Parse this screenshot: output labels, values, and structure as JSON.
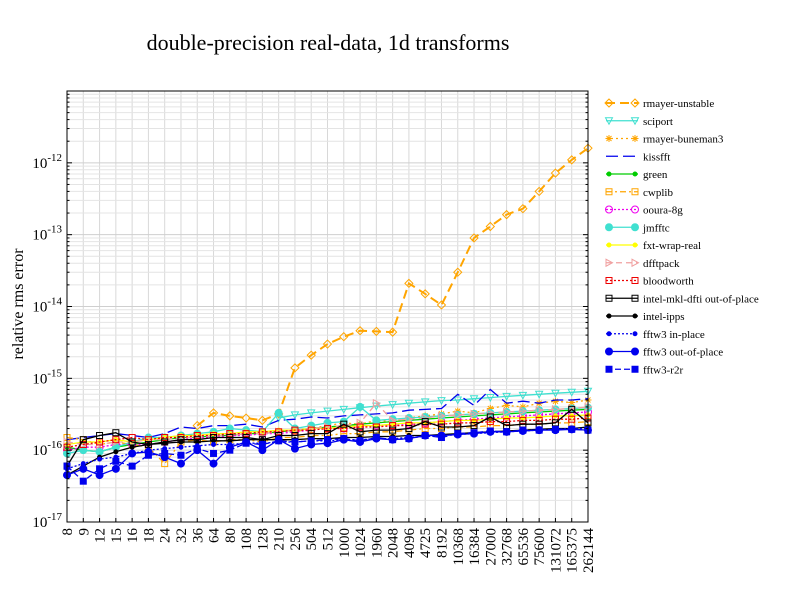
{
  "chart_data": {
    "type": "line",
    "title": "double-precision real-data, 1d transforms",
    "xlabel": "",
    "ylabel": "relative rms error",
    "y_scale": "log",
    "ylim": [
      1e-17,
      1e-11
    ],
    "y_ticks": [
      {
        "base": "10",
        "exp": "-17",
        "value": 1e-17
      },
      {
        "base": "10",
        "exp": "-16",
        "value": 1e-16
      },
      {
        "base": "10",
        "exp": "-15",
        "value": 1e-15
      },
      {
        "base": "10",
        "exp": "-14",
        "value": 1e-14
      },
      {
        "base": "10",
        "exp": "-13",
        "value": 1e-13
      },
      {
        "base": "10",
        "exp": "-12",
        "value": 1e-12
      }
    ],
    "grid": true,
    "legend_position": "right",
    "categories": [
      "8",
      "9",
      "12",
      "15",
      "16",
      "18",
      "24",
      "32",
      "36",
      "64",
      "80",
      "108",
      "128",
      "210",
      "256",
      "504",
      "512",
      "1000",
      "1024",
      "1960",
      "2048",
      "4096",
      "4725",
      "8192",
      "10368",
      "16384",
      "27000",
      "32768",
      "65536",
      "75600",
      "131072",
      "165375",
      "262144"
    ],
    "series": [
      {
        "name": "rmayer-unstable",
        "color": "#ffa500",
        "dash": "9,5",
        "marker": "diamond",
        "fill": "none",
        "values": [
          null,
          null,
          null,
          null,
          null,
          null,
          null,
          null,
          2.2e-16,
          3.3e-16,
          3e-16,
          2.8e-16,
          2.6e-16,
          3.2e-16,
          1.4e-15,
          2.1e-15,
          3e-15,
          3.8e-15,
          4.6e-15,
          4.5e-15,
          4.4e-15,
          2.1e-14,
          1.5e-14,
          1.05e-14,
          3e-14,
          9e-14,
          1.3e-13,
          1.9e-13,
          2.3e-13,
          4e-13,
          7.2e-13,
          1.1e-12,
          1.6e-12
        ]
      },
      {
        "name": "sciport",
        "color": "#40e0d0",
        "dash": "none",
        "marker": "tri-down",
        "fill": "none",
        "values": [
          null,
          null,
          null,
          null,
          null,
          null,
          null,
          null,
          null,
          null,
          null,
          null,
          null,
          2.8e-16,
          3.1e-16,
          3.3e-16,
          3.5e-16,
          3.7e-16,
          3.9e-16,
          4.1e-16,
          4.3e-16,
          4.5e-16,
          4.7e-16,
          4.9e-16,
          5e-16,
          5.2e-16,
          5.4e-16,
          5.6e-16,
          5.8e-16,
          6e-16,
          6.2e-16,
          6.4e-16,
          6.6e-16
        ]
      },
      {
        "name": "rmayer-buneman3",
        "color": "#ffa500",
        "dash": "2,3",
        "marker": "star",
        "fill": "none",
        "values": [
          null,
          null,
          null,
          null,
          null,
          null,
          null,
          null,
          null,
          null,
          null,
          null,
          null,
          null,
          1.8e-16,
          2e-16,
          2.2e-16,
          2.4e-16,
          2.3e-16,
          2.6e-16,
          2.5e-16,
          2.8e-16,
          3e-16,
          3.2e-16,
          3.5e-16,
          3.3e-16,
          3.8e-16,
          4.2e-16,
          4e-16,
          4.5e-16,
          4.8e-16,
          4.6e-16,
          5e-16
        ]
      },
      {
        "name": "kissfft",
        "color": "#0000ee",
        "dash": "12,5",
        "marker": "none",
        "fill": "none",
        "values": [
          1.4e-16,
          1.5e-16,
          1.6e-16,
          1.7e-16,
          1.6e-16,
          1.5e-16,
          1.7e-16,
          2.1e-16,
          2e-16,
          2.2e-16,
          2.2e-16,
          2.3e-16,
          2.1e-16,
          2.6e-16,
          2.7e-16,
          2.9e-16,
          2.8e-16,
          3e-16,
          3.1e-16,
          3.2e-16,
          3.3e-16,
          3.6e-16,
          3.7e-16,
          3.8e-16,
          6e-16,
          4.2e-16,
          7e-16,
          4.5e-16,
          4.8e-16,
          4.5e-16,
          5e-16,
          5e-16,
          5.2e-16
        ]
      },
      {
        "name": "green",
        "color": "#00cc00",
        "dash": "none",
        "marker": "dot",
        "fill": "#00cc00",
        "values": [
          1.1e-16,
          1e-16,
          9.5e-17,
          1.1e-16,
          1.2e-16,
          1.3e-16,
          1.4e-16,
          1.5e-16,
          1.5e-16,
          1.6e-16,
          1.6e-16,
          1.7e-16,
          1.7e-16,
          1.8e-16,
          1.9e-16,
          2e-16,
          2.1e-16,
          2.2e-16,
          2.3e-16,
          2.4e-16,
          2.5e-16,
          2.6e-16,
          2.7e-16,
          2.8e-16,
          2.9e-16,
          3e-16,
          3.1e-16,
          3.2e-16,
          3.3e-16,
          3.4e-16,
          3.5e-16,
          3.6e-16,
          3.7e-16
        ]
      },
      {
        "name": "cwplib",
        "color": "#ffa500",
        "dash": "6,3,2,3",
        "marker": "square",
        "fill": "none",
        "values": [
          1.5e-16,
          1.4e-16,
          1.2e-16,
          1.3e-16,
          1.2e-16,
          1.1e-16,
          6.5e-17,
          1.3e-16,
          1.4e-16,
          1.3e-16,
          1.4e-16,
          1.4e-16,
          1.3e-16,
          1.5e-16,
          1.5e-16,
          1.6e-16,
          1.6e-16,
          1.7e-16,
          1.7e-16,
          1.8e-16,
          1.8e-16,
          1.9e-16,
          2e-16,
          2e-16,
          2.1e-16,
          2.1e-16,
          2.2e-16,
          2.2e-16,
          2.3e-16,
          2.3e-16,
          2.4e-16,
          2.4e-16,
          2.5e-16
        ]
      },
      {
        "name": "ooura-8g",
        "color": "#ee00ee",
        "dash": "2,2",
        "marker": "circle",
        "fill": "none",
        "values": [
          1e-16,
          1.1e-16,
          1.1e-16,
          1.2e-16,
          1.2e-16,
          1.2e-16,
          1.3e-16,
          1.4e-16,
          1.5e-16,
          1.5e-16,
          1.6e-16,
          1.6e-16,
          1.7e-16,
          1.7e-16,
          1.8e-16,
          1.9e-16,
          2e-16,
          2e-16,
          2.1e-16,
          2.2e-16,
          2.2e-16,
          2.3e-16,
          2.4e-16,
          2.5e-16,
          2.6e-16,
          2.7e-16,
          2.8e-16,
          2.9e-16,
          3e-16,
          3.1e-16,
          3.2e-16,
          3.3e-16,
          3.4e-16
        ]
      },
      {
        "name": "jmfftc",
        "color": "#40e0d0",
        "dash": "none",
        "marker": "circle",
        "fill": "#40e0d0",
        "values": [
          9e-17,
          1e-16,
          9.5e-17,
          1.1e-16,
          1.3e-16,
          1.5e-16,
          1.5e-16,
          1.6e-16,
          1.7e-16,
          1.8e-16,
          2e-16,
          1.9e-16,
          1.8e-16,
          3.3e-16,
          2e-16,
          2.2e-16,
          2.4e-16,
          2.5e-16,
          4e-16,
          2.6e-16,
          2.7e-16,
          2.8e-16,
          2.9e-16,
          3e-16,
          3.1e-16,
          3.2e-16,
          3.3e-16,
          3.4e-16,
          3.5e-16,
          3.6e-16,
          3.7e-16,
          3.8e-16,
          3.9e-16
        ]
      },
      {
        "name": "fxt-wrap-real",
        "color": "#ffff00",
        "dash": "none",
        "marker": "dot",
        "fill": "#ffff00",
        "values": [
          1.2e-16,
          1.3e-16,
          1.3e-16,
          1.4e-16,
          1.3e-16,
          1.4e-16,
          1.5e-16,
          1.6e-16,
          1.6e-16,
          1.7e-16,
          1.7e-16,
          1.8e-16,
          1.8e-16,
          1.9e-16,
          1.9e-16,
          2e-16,
          2e-16,
          2.1e-16,
          2.2e-16,
          2.2e-16,
          2.3e-16,
          2.4e-16,
          2.4e-16,
          2.5e-16,
          2.6e-16,
          2.6e-16,
          2.7e-16,
          2.8e-16,
          2.8e-16,
          2.9e-16,
          3e-16,
          3e-16,
          3.1e-16
        ]
      },
      {
        "name": "dfftpack",
        "color": "#f0a0a0",
        "dash": "6,4",
        "marker": "tri-right",
        "fill": "none",
        "values": [
          1.3e-16,
          1.2e-16,
          1.2e-16,
          1.3e-16,
          1.3e-16,
          1.4e-16,
          1.4e-16,
          1.5e-16,
          1.5e-16,
          1.6e-16,
          1.6e-16,
          1.7e-16,
          1.7e-16,
          1.8e-16,
          1.9e-16,
          2e-16,
          2.1e-16,
          2.2e-16,
          2.4e-16,
          4.5e-16,
          2.6e-16,
          2.7e-16,
          2.8e-16,
          3e-16,
          3.1e-16,
          3.2e-16,
          3.3e-16,
          3.4e-16,
          3.5e-16,
          3.6e-16,
          3.7e-16,
          3.8e-16,
          4e-16
        ]
      },
      {
        "name": "bloodworth",
        "color": "#ee0000",
        "dash": "2,2",
        "marker": "square",
        "fill": "none",
        "values": [
          1.1e-16,
          1.2e-16,
          1.3e-16,
          1.4e-16,
          1.5e-16,
          1.4e-16,
          1.5e-16,
          1.5e-16,
          1.6e-16,
          1.6e-16,
          1.7e-16,
          1.7e-16,
          1.8e-16,
          1.8e-16,
          1.9e-16,
          1.9e-16,
          2e-16,
          2e-16,
          2.1e-16,
          2.1e-16,
          2.2e-16,
          2.2e-16,
          2.3e-16,
          2.3e-16,
          2.4e-16,
          2.4e-16,
          2.5e-16,
          2.5e-16,
          2.6e-16,
          2.6e-16,
          2.7e-16,
          2.7e-16,
          2.8e-16
        ]
      },
      {
        "name": "intel-mkl-dfti out-of-place",
        "color": "#000000",
        "dash": "none",
        "marker": "square",
        "fill": "none",
        "values": [
          6e-17,
          1.4e-16,
          1.6e-16,
          1.75e-16,
          1.3e-16,
          1.2e-16,
          1.3e-16,
          1.4e-16,
          1.4e-16,
          1.5e-16,
          1.5e-16,
          1.5e-16,
          1.4e-16,
          1.6e-16,
          1.6e-16,
          1.7e-16,
          1.7e-16,
          2.3e-16,
          1.8e-16,
          1.9e-16,
          1.9e-16,
          2e-16,
          2.5e-16,
          2.1e-16,
          2.1e-16,
          2.2e-16,
          2.9e-16,
          2.2e-16,
          2.3e-16,
          2.3e-16,
          2.4e-16,
          3.7e-16,
          2.4e-16
        ]
      },
      {
        "name": "intel-ipps",
        "color": "#000000",
        "dash": "none",
        "marker": "dot",
        "fill": "#000000",
        "values": [
          4.5e-17,
          6e-17,
          8e-17,
          9.5e-17,
          1.1e-16,
          1.2e-16,
          1.25e-16,
          1.3e-16,
          1.3e-16,
          1.35e-16,
          1.35e-16,
          1.4e-16,
          1.4e-16,
          1.4e-16,
          1.4e-16,
          1.45e-16,
          1.45e-16,
          1.5e-16,
          1.5e-16,
          1.55e-16,
          1.55e-16,
          1.6e-16,
          1.6e-16,
          1.65e-16,
          1.7e-16,
          1.75e-16,
          1.8e-16,
          1.85e-16,
          1.9e-16,
          1.95e-16,
          2e-16,
          2e-16,
          2.1e-16
        ]
      },
      {
        "name": "fftw3 in-place",
        "color": "#0000ee",
        "dash": "2,2",
        "marker": "dot",
        "fill": "#0000ee",
        "values": [
          5.5e-17,
          6.5e-17,
          7.5e-17,
          8e-17,
          9e-17,
          1e-16,
          1.05e-16,
          1.1e-16,
          1.15e-16,
          1.2e-16,
          1.2e-16,
          1.25e-16,
          1.25e-16,
          1.3e-16,
          1.3e-16,
          1.35e-16,
          1.35e-16,
          1.4e-16,
          1.4e-16,
          1.45e-16,
          1.45e-16,
          1.5e-16,
          1.55e-16,
          1.6e-16,
          1.65e-16,
          1.7e-16,
          1.75e-16,
          1.8e-16,
          1.85e-16,
          1.9e-16,
          1.95e-16,
          2e-16,
          2e-16
        ]
      },
      {
        "name": "fftw3 out-of-place",
        "color": "#0000ee",
        "dash": "none",
        "marker": "circle",
        "fill": "#0000ee",
        "values": [
          4.5e-17,
          5.5e-17,
          4.5e-17,
          5.5e-17,
          9e-17,
          9.5e-17,
          8e-17,
          6.5e-17,
          1e-16,
          6.5e-17,
          1.1e-16,
          1.3e-16,
          1e-16,
          1.4e-16,
          1.05e-16,
          1.2e-16,
          1.25e-16,
          1.4e-16,
          1.3e-16,
          1.45e-16,
          1.4e-16,
          1.45e-16,
          1.6e-16,
          1.6e-16,
          1.65e-16,
          1.7e-16,
          1.8e-16,
          1.8e-16,
          1.85e-16,
          1.9e-16,
          1.9e-16,
          1.95e-16,
          1.9e-16
        ]
      },
      {
        "name": "fftw3-r2r",
        "color": "#0000ee",
        "dash": "6,3",
        "marker": "square",
        "fill": "#0000ee",
        "values": [
          6e-17,
          3.7e-17,
          5.5e-17,
          7e-17,
          6e-17,
          8.5e-17,
          9e-17,
          8.5e-17,
          1.05e-16,
          9e-17,
          1e-16,
          1.25e-16,
          1.2e-16,
          1.35e-16,
          1.3e-16,
          1.35e-16,
          1.4e-16,
          1.45e-16,
          1.35e-16,
          1.5e-16,
          1.4e-16,
          1.45e-16,
          1.6e-16,
          1.5e-16,
          1.7e-16,
          1.75e-16,
          1.85e-16,
          1.8e-16,
          1.9e-16,
          1.9e-16,
          1.95e-16,
          1.95e-16,
          1.9e-16
        ]
      }
    ]
  }
}
